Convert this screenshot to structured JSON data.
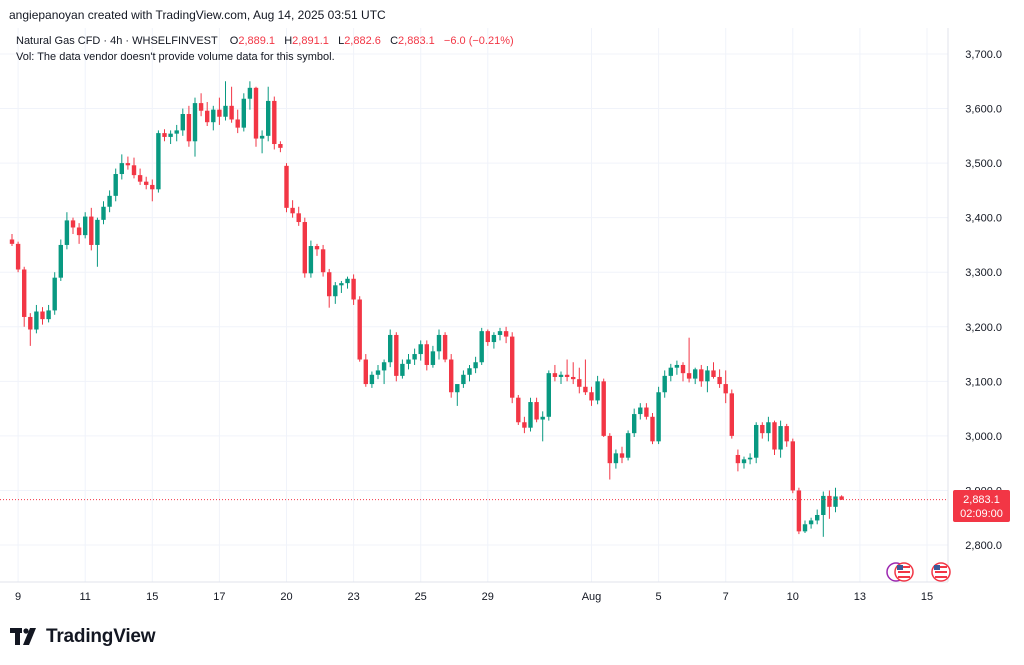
{
  "header": {
    "creator_text": "angiepanoyan created with TradingView.com, Aug 14, 2025 03:51 UTC"
  },
  "legend": {
    "symbol": "Natural Gas CFD · 4h · WHSELFINVEST",
    "o_label": "O",
    "o_value": "2,889.1",
    "h_label": "H",
    "h_value": "2,891.1",
    "l_label": "L",
    "l_value": "2,882.6",
    "c_label": "C",
    "c_value": "2,883.1",
    "change": "−6.0 (−0.21%)",
    "vol_text": "Vol: The data vendor doesn't provide volume data for this symbol."
  },
  "price_label": {
    "price": "2,883.1",
    "countdown": "02:09:00"
  },
  "brand": {
    "name": "TradingView"
  },
  "colors": {
    "up": "#089981",
    "down": "#f23645",
    "grid": "#f0f3fa",
    "text": "#131722",
    "flag": "#9c27b0"
  },
  "chart_data": {
    "type": "candlestick",
    "title": "Natural Gas CFD · 4h · WHSELFINVEST",
    "ylim": [
      2740,
      3760
    ],
    "y_ticks": [
      2800,
      2900,
      3000,
      3100,
      3200,
      3300,
      3400,
      3500,
      3600,
      3700
    ],
    "y_tick_labels": [
      "2,800.0",
      "2,900.0",
      "3,000.0",
      "3,100.0",
      "3,200.0",
      "3,300.0",
      "3,400.0",
      "3,500.0",
      "3,600.0",
      "3,700.0"
    ],
    "x_ticks": [
      {
        "index": 1,
        "label": "9"
      },
      {
        "index": 12,
        "label": "11"
      },
      {
        "index": 23,
        "label": "15"
      },
      {
        "index": 34,
        "label": "17"
      },
      {
        "index": 45,
        "label": "20"
      },
      {
        "index": 56,
        "label": "23"
      },
      {
        "index": 67,
        "label": "25"
      },
      {
        "index": 78,
        "label": "29"
      },
      {
        "index": 95,
        "label": "Aug"
      },
      {
        "index": 106,
        "label": "5"
      },
      {
        "index": 117,
        "label": "7"
      },
      {
        "index": 128,
        "label": "10"
      },
      {
        "index": 139,
        "label": "13"
      },
      {
        "index": 150,
        "label": "15"
      }
    ],
    "last_price": 2883.1,
    "candles": [
      [
        3360,
        3370,
        3348,
        3352
      ],
      [
        3352,
        3356,
        3300,
        3305
      ],
      [
        3305,
        3310,
        3200,
        3218
      ],
      [
        3218,
        3225,
        3165,
        3195
      ],
      [
        3195,
        3240,
        3188,
        3228
      ],
      [
        3228,
        3236,
        3204,
        3214
      ],
      [
        3214,
        3240,
        3208,
        3230
      ],
      [
        3230,
        3300,
        3222,
        3290
      ],
      [
        3290,
        3360,
        3284,
        3350
      ],
      [
        3350,
        3410,
        3342,
        3395
      ],
      [
        3395,
        3400,
        3370,
        3382
      ],
      [
        3382,
        3390,
        3352,
        3368
      ],
      [
        3368,
        3410,
        3362,
        3402
      ],
      [
        3402,
        3418,
        3340,
        3350
      ],
      [
        3350,
        3400,
        3310,
        3396
      ],
      [
        3396,
        3430,
        3388,
        3420
      ],
      [
        3420,
        3450,
        3410,
        3440
      ],
      [
        3440,
        3490,
        3430,
        3480
      ],
      [
        3480,
        3516,
        3470,
        3500
      ],
      [
        3500,
        3512,
        3488,
        3496
      ],
      [
        3496,
        3510,
        3472,
        3478
      ],
      [
        3478,
        3490,
        3460,
        3466
      ],
      [
        3466,
        3475,
        3452,
        3460
      ],
      [
        3460,
        3470,
        3430,
        3452
      ],
      [
        3452,
        3560,
        3446,
        3555
      ],
      [
        3555,
        3562,
        3540,
        3548
      ],
      [
        3548,
        3560,
        3535,
        3554
      ],
      [
        3554,
        3570,
        3540,
        3560
      ],
      [
        3560,
        3600,
        3550,
        3590
      ],
      [
        3590,
        3605,
        3530,
        3540
      ],
      [
        3540,
        3620,
        3512,
        3610
      ],
      [
        3610,
        3628,
        3586,
        3596
      ],
      [
        3596,
        3612,
        3568,
        3575
      ],
      [
        3575,
        3605,
        3560,
        3598
      ],
      [
        3598,
        3620,
        3570,
        3585
      ],
      [
        3585,
        3650,
        3578,
        3605
      ],
      [
        3605,
        3640,
        3574,
        3580
      ],
      [
        3580,
        3598,
        3555,
        3565
      ],
      [
        3565,
        3628,
        3558,
        3618
      ],
      [
        3618,
        3650,
        3598,
        3638
      ],
      [
        3638,
        3640,
        3530,
        3545
      ],
      [
        3545,
        3560,
        3518,
        3550
      ],
      [
        3550,
        3640,
        3540,
        3614
      ],
      [
        3614,
        3622,
        3525,
        3535
      ],
      [
        3535,
        3540,
        3520,
        3528
      ],
      [
        3495,
        3500,
        3410,
        3418
      ],
      [
        3418,
        3432,
        3400,
        3408
      ],
      [
        3408,
        3420,
        3385,
        3392
      ],
      [
        3392,
        3400,
        3290,
        3298
      ],
      [
        3298,
        3358,
        3290,
        3348
      ],
      [
        3348,
        3352,
        3330,
        3342
      ],
      [
        3342,
        3350,
        3292,
        3300
      ],
      [
        3300,
        3306,
        3235,
        3256
      ],
      [
        3256,
        3282,
        3242,
        3276
      ],
      [
        3276,
        3284,
        3262,
        3280
      ],
      [
        3280,
        3292,
        3270,
        3288
      ],
      [
        3288,
        3296,
        3240,
        3250
      ],
      [
        3250,
        3256,
        3136,
        3140
      ],
      [
        3140,
        3150,
        3090,
        3095
      ],
      [
        3095,
        3118,
        3088,
        3112
      ],
      [
        3112,
        3130,
        3104,
        3120
      ],
      [
        3120,
        3140,
        3095,
        3135
      ],
      [
        3135,
        3195,
        3126,
        3185
      ],
      [
        3185,
        3190,
        3100,
        3110
      ],
      [
        3110,
        3140,
        3105,
        3132
      ],
      [
        3132,
        3150,
        3122,
        3140
      ],
      [
        3140,
        3160,
        3130,
        3150
      ],
      [
        3150,
        3175,
        3138,
        3168
      ],
      [
        3168,
        3175,
        3120,
        3130
      ],
      [
        3130,
        3165,
        3125,
        3155
      ],
      [
        3155,
        3195,
        3140,
        3185
      ],
      [
        3185,
        3190,
        3135,
        3140
      ],
      [
        3140,
        3150,
        3070,
        3080
      ],
      [
        3080,
        3090,
        3055,
        3095
      ],
      [
        3095,
        3120,
        3088,
        3112
      ],
      [
        3112,
        3130,
        3100,
        3124
      ],
      [
        3124,
        3145,
        3115,
        3135
      ],
      [
        3135,
        3198,
        3130,
        3192
      ],
      [
        3192,
        3195,
        3165,
        3172
      ],
      [
        3172,
        3190,
        3160,
        3185
      ],
      [
        3185,
        3198,
        3175,
        3192
      ],
      [
        3192,
        3200,
        3170,
        3182
      ],
      [
        3182,
        3190,
        3060,
        3070
      ],
      [
        3070,
        3075,
        3020,
        3025
      ],
      [
        3025,
        3035,
        3005,
        3015
      ],
      [
        3015,
        3070,
        3008,
        3062
      ],
      [
        3062,
        3070,
        3025,
        3030
      ],
      [
        3030,
        3045,
        2990,
        3035
      ],
      [
        3035,
        3120,
        3028,
        3115
      ],
      [
        3115,
        3130,
        3100,
        3108
      ],
      [
        3108,
        3118,
        3095,
        3112
      ],
      [
        3112,
        3140,
        3100,
        3108
      ],
      [
        3108,
        3135,
        3095,
        3104
      ],
      [
        3104,
        3125,
        3078,
        3090
      ],
      [
        3090,
        3140,
        3075,
        3080
      ],
      [
        3080,
        3090,
        3055,
        3065
      ],
      [
        3065,
        3110,
        3058,
        3100
      ],
      [
        3100,
        3105,
        2998,
        3000
      ],
      [
        3000,
        3005,
        2920,
        2950
      ],
      [
        2950,
        2975,
        2940,
        2968
      ],
      [
        2968,
        2980,
        2950,
        2960
      ],
      [
        2960,
        3010,
        2955,
        3005
      ],
      [
        3005,
        3050,
        2998,
        3040
      ],
      [
        3040,
        3060,
        3030,
        3052
      ],
      [
        3052,
        3060,
        3030,
        3035
      ],
      [
        3035,
        3042,
        2985,
        2990
      ],
      [
        2990,
        3090,
        2985,
        3080
      ],
      [
        3080,
        3120,
        3070,
        3110
      ],
      [
        3110,
        3132,
        3100,
        3125
      ],
      [
        3125,
        3138,
        3112,
        3130
      ],
      [
        3130,
        3135,
        3100,
        3115
      ],
      [
        3115,
        3180,
        3098,
        3105
      ],
      [
        3105,
        3125,
        3095,
        3122
      ],
      [
        3122,
        3130,
        3090,
        3100
      ],
      [
        3100,
        3128,
        3080,
        3120
      ],
      [
        3120,
        3135,
        3105,
        3108
      ],
      [
        3108,
        3122,
        3088,
        3095
      ],
      [
        3095,
        3120,
        3060,
        3078
      ],
      [
        3078,
        3085,
        2995,
        3000
      ],
      [
        2965,
        2975,
        2935,
        2950
      ],
      [
        2950,
        2962,
        2940,
        2957
      ],
      [
        2957,
        2968,
        2948,
        2960
      ],
      [
        2960,
        3025,
        2950,
        3020
      ],
      [
        3020,
        3025,
        2995,
        3005
      ],
      [
        3005,
        3035,
        2990,
        3025
      ],
      [
        3025,
        3028,
        2965,
        2975
      ],
      [
        2975,
        3028,
        2960,
        3018
      ],
      [
        3018,
        3022,
        2980,
        2990
      ],
      [
        2990,
        2995,
        2895,
        2900
      ],
      [
        2900,
        2905,
        2820,
        2825
      ],
      [
        2825,
        2845,
        2822,
        2838
      ],
      [
        2838,
        2850,
        2830,
        2845
      ],
      [
        2845,
        2865,
        2838,
        2855
      ],
      [
        2855,
        2898,
        2815,
        2890
      ],
      [
        2890,
        2900,
        2848,
        2870
      ],
      [
        2870,
        2905,
        2860,
        2889
      ],
      [
        2889.1,
        2891.1,
        2882.6,
        2883.1
      ]
    ]
  }
}
